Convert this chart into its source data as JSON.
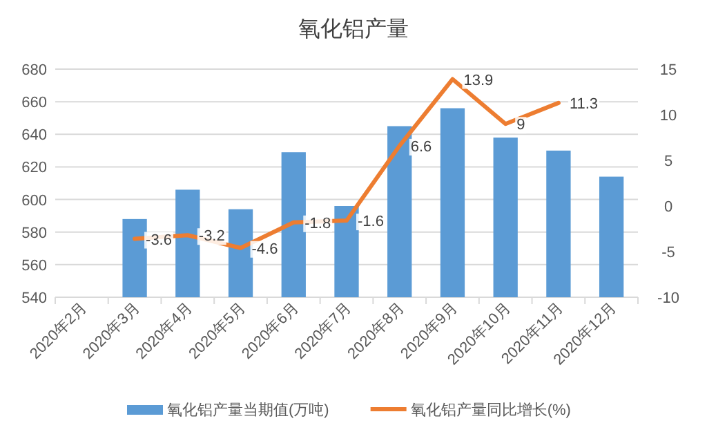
{
  "chart_data": {
    "type": "bar",
    "title": "氧化铝产量",
    "categories": [
      "2020年2月",
      "2020年3月",
      "2020年4月",
      "2020年5月",
      "2020年6月",
      "2020年7月",
      "2020年8月",
      "2020年9月",
      "2020年10月",
      "2020年11月",
      "2020年12月"
    ],
    "series": [
      {
        "name": "氧化铝产量当期值(万吨)",
        "color": "#5b9bd5",
        "values": [
          null,
          588,
          606,
          594,
          629,
          596,
          645,
          656,
          638,
          630,
          614
        ]
      },
      {
        "name": "氧化铝产量同比增长(%)",
        "type": "line",
        "axis": "y2",
        "color": "#ed7d31",
        "values": [
          null,
          -3.6,
          -3.2,
          -4.6,
          -1.8,
          -1.6,
          6.6,
          13.9,
          9,
          11.3,
          null
        ],
        "value_labels": [
          null,
          "-3.6",
          "-3.2",
          "-4.6",
          "-1.8",
          "-1.6",
          "6.6",
          "13.9",
          "9",
          "11.3",
          null
        ]
      }
    ],
    "ylim": [
      540,
      680
    ],
    "yticks": [
      540,
      560,
      580,
      600,
      620,
      640,
      660,
      680
    ],
    "y2lim": [
      -10,
      15
    ],
    "y2ticks": [
      -10,
      -5,
      0,
      5,
      10,
      15
    ],
    "grid": "y",
    "legend": "bottom"
  }
}
